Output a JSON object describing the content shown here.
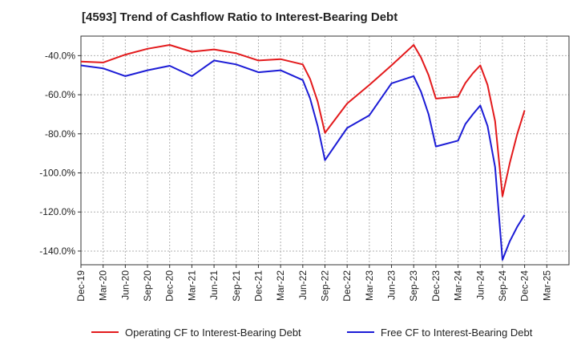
{
  "page": {
    "title": "[4593]  Trend of Cashflow Ratio to Interest-Bearing Debt"
  },
  "chart_data": {
    "type": "line",
    "title": "[4593]  Trend of Cashflow Ratio to Interest-Bearing Debt",
    "xlabel": "",
    "ylabel": "",
    "ylim": [
      -147,
      -30
    ],
    "yticks": [
      -40,
      -60,
      -80,
      -100,
      -120,
      -140
    ],
    "ytick_labels": [
      "-40.0%",
      "-60.0%",
      "-80.0%",
      "-100.0%",
      "-120.0%",
      "-140.0%"
    ],
    "x_labels": [
      "Dec-19",
      "Mar-20",
      "Jun-20",
      "Sep-20",
      "Dec-20",
      "Mar-21",
      "Jun-21",
      "Sep-21",
      "Dec-21",
      "Mar-22",
      "Jun-22",
      "Sep-22",
      "Dec-22",
      "Mar-23",
      "Jun-23",
      "Sep-23",
      "Dec-23",
      "Mar-24",
      "Jun-24",
      "Sep-24",
      "Dec-24",
      "Mar-25"
    ],
    "grid": true,
    "legend_position": "bottom",
    "series": [
      {
        "name": "Operating CF to Interest-Bearing Debt",
        "color": "#e31a1c",
        "x": [
          0,
          1,
          2,
          3,
          4,
          5,
          6,
          7,
          8,
          9,
          10,
          10.33,
          10.67,
          11,
          12,
          13,
          14,
          15,
          15.33,
          15.67,
          16,
          17,
          17.33,
          17.67,
          18,
          18.33,
          18.67,
          19,
          19.33,
          19.67,
          20
        ],
        "values": [
          -43,
          -43.5,
          -39.5,
          -36.5,
          -34.5,
          -38,
          -36.8,
          -38.8,
          -42.5,
          -41.8,
          -44.5,
          -52,
          -63.5,
          -79.5,
          -64.5,
          -55,
          -45,
          -34.5,
          -41,
          -50,
          -62,
          -61,
          -54,
          -49,
          -45,
          -55,
          -73.5,
          -112,
          -95,
          -80,
          -68
        ]
      },
      {
        "name": "Free CF to Interest-Bearing Debt",
        "color": "#1c1cd6",
        "x": [
          0,
          1,
          2,
          3,
          4,
          5,
          6,
          7,
          8,
          9,
          10,
          10.33,
          10.67,
          11,
          12,
          13,
          14,
          15,
          15.33,
          15.67,
          16,
          17,
          17.33,
          17.67,
          18,
          18.33,
          18.67,
          19,
          19.33,
          19.67,
          20
        ],
        "values": [
          -45,
          -46.5,
          -50.5,
          -47.5,
          -45.2,
          -50.5,
          -42.5,
          -44.5,
          -48.5,
          -47.5,
          -52.5,
          -62,
          -76,
          -93.5,
          -77,
          -70.5,
          -54.2,
          -50.5,
          -58.5,
          -70,
          -86.5,
          -83.5,
          -75,
          -70,
          -65.5,
          -76,
          -97,
          -144.5,
          -135,
          -127.5,
          -121.5
        ]
      }
    ]
  }
}
